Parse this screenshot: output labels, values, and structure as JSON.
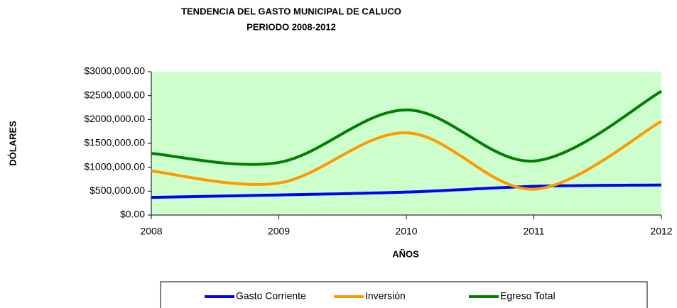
{
  "chart_data": {
    "type": "line",
    "title": "TENDENCIA DEL GASTO MUNICIPAL DE CALUCO",
    "subtitle": "PERIODO 2008-2012",
    "x_label": "AÑOS",
    "y_label": "DÓLARES",
    "x": [
      2008,
      2009,
      2010,
      2011,
      2012
    ],
    "xlim": [
      2008,
      2012
    ],
    "xticks": [
      2008,
      2009,
      2010,
      2011,
      2012
    ],
    "ylim": [
      0,
      3000000
    ],
    "yticks": [
      {
        "value": 0,
        "label": "$0.00"
      },
      {
        "value": 500000,
        "label": "$500,000.00"
      },
      {
        "value": 1000000,
        "label": "$1000,000.00"
      },
      {
        "value": 1500000,
        "label": "$1500,000.00"
      },
      {
        "value": 2000000,
        "label": "$2000,000.00"
      },
      {
        "value": 2500000,
        "label": "$2500,000.00"
      },
      {
        "value": 3000000,
        "label": "$3000,000.00"
      }
    ],
    "smooth": true,
    "plot_background": "#ccffcc",
    "legend": "bottom",
    "series": [
      {
        "name": "Gasto Corriente",
        "color": "#0000ff",
        "values": [
          370000,
          420000,
          480000,
          600000,
          630000
        ]
      },
      {
        "name": "Inversión",
        "color": "#ff9900",
        "values": [
          920000,
          670000,
          1720000,
          540000,
          1960000
        ]
      },
      {
        "name": "Egreso Total",
        "color": "#008000",
        "values": [
          1290000,
          1100000,
          2200000,
          1130000,
          2590000
        ]
      }
    ]
  }
}
